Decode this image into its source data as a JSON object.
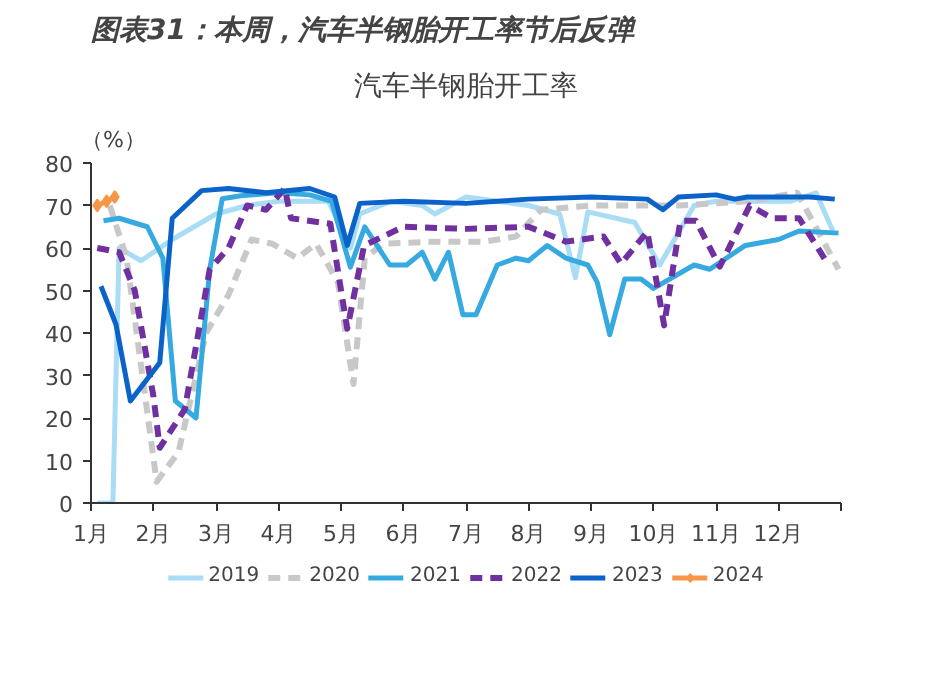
{
  "chart_data": {
    "type": "line",
    "title": "图表31：本周，汽车半钢胎开工率节后反弹",
    "subtitle": "汽车半钢胎开工率",
    "ylabel": "（%）",
    "xlim": [
      1,
      13
    ],
    "xticks": [
      {
        "value": 1,
        "label": "1月"
      },
      {
        "value": 2,
        "label": "2月"
      },
      {
        "value": 3,
        "label": "3月"
      },
      {
        "value": 4,
        "label": "4月"
      },
      {
        "value": 5,
        "label": "5月"
      },
      {
        "value": 6,
        "label": "6月"
      },
      {
        "value": 7,
        "label": "7月"
      },
      {
        "value": 8,
        "label": "8月"
      },
      {
        "value": 9,
        "label": "9月"
      },
      {
        "value": 10,
        "label": "10月"
      },
      {
        "value": 11,
        "label": "11月"
      },
      {
        "value": 12,
        "label": "12月"
      },
      {
        "value": 13,
        "label": null
      }
    ],
    "ylim": [
      0,
      80
    ],
    "yticks": [
      0,
      10,
      20,
      30,
      40,
      50,
      60,
      70,
      80
    ],
    "grid": false,
    "legend": "bottom",
    "series": [
      {
        "name": "2019",
        "color": "#a9dcf5",
        "line_style": "solid",
        "marker": "none",
        "x": [
          1.1,
          1.35,
          1.45,
          1.8,
          2.3,
          3,
          3.5,
          4,
          4.8,
          5.15,
          5.3,
          5.8,
          6.3,
          6.5,
          7,
          7.5,
          8,
          8.5,
          8.75,
          8.95,
          9.7,
          10.1,
          10.65,
          11,
          11.5,
          12.2,
          12.6,
          12.87
        ],
        "values": [
          0,
          0,
          60,
          57,
          62,
          68,
          70,
          71,
          71,
          60,
          68,
          71,
          70,
          68,
          72,
          71,
          70,
          68,
          53,
          68.5,
          66,
          56,
          70,
          71,
          71,
          71,
          73,
          64
        ]
      },
      {
        "name": "2020",
        "color": "#c8c8c8",
        "line_style": "dashed",
        "marker": "none",
        "x": [
          1.3,
          1.57,
          2.05,
          2.4,
          2.84,
          3.2,
          3.57,
          3.9,
          4.3,
          4.6,
          4.95,
          5.2,
          5.38,
          5.68,
          6.5,
          7.3,
          7.8,
          8.2,
          9,
          10.4,
          11.5,
          12.3,
          12.96
        ],
        "values": [
          70,
          57.6,
          5,
          12,
          40,
          49,
          62,
          61,
          57.6,
          61,
          52,
          28,
          57.6,
          61,
          61.5,
          61.5,
          62.7,
          69,
          70,
          70,
          71,
          73,
          55
        ]
      },
      {
        "name": "2021",
        "color": "#36a9e1",
        "line_style": "solid",
        "marker": "none",
        "x": [
          1.2,
          1.45,
          1.9,
          2.15,
          2.35,
          2.68,
          2.9,
          3.1,
          3.4,
          4,
          4.5,
          4.85,
          5.15,
          5.38,
          5.78,
          6.05,
          6.3,
          6.5,
          6.72,
          6.95,
          7.16,
          7.5,
          7.8,
          8,
          8.3,
          8.6,
          8.95,
          9.1,
          9.3,
          9.54,
          9.8,
          10,
          10.65,
          10.9,
          11.47,
          12,
          12.33,
          12.96
        ],
        "values": [
          66.4,
          67,
          65,
          57.6,
          24,
          20,
          55,
          71.6,
          72.3,
          73,
          72.5,
          71,
          55.5,
          65,
          56,
          56,
          59,
          52.7,
          59,
          44.3,
          44.3,
          56,
          57.6,
          57,
          60.6,
          57.6,
          56,
          51.9,
          39.6,
          52.7,
          52.7,
          50.5,
          56,
          55,
          60.6,
          62,
          64,
          63.5
        ]
      },
      {
        "name": "2022",
        "color": "#7030a0",
        "line_style": "dashed",
        "marker": "none",
        "x": [
          1.1,
          1.45,
          1.7,
          2.0,
          2.1,
          2.5,
          2.9,
          3.2,
          3.5,
          3.8,
          4.1,
          4.2,
          4.83,
          5.1,
          5.37,
          6,
          7,
          8,
          8.6,
          9.2,
          9.48,
          9.9,
          10.05,
          10.17,
          10.43,
          10.68,
          11.06,
          11.54,
          11.9,
          12.33,
          12.8
        ],
        "values": [
          60,
          59,
          50,
          25,
          13,
          22,
          55,
          60,
          70,
          69,
          74,
          67,
          65.7,
          41,
          60.6,
          65,
          64.5,
          65,
          61.5,
          62.7,
          56.3,
          63.8,
          52,
          41.8,
          66.4,
          66.4,
          55.6,
          70,
          67,
          67,
          56
        ]
      },
      {
        "name": "2023",
        "color": "#0b62c9",
        "line_style": "solid",
        "marker": "none",
        "x": [
          1.16,
          1.4,
          1.63,
          2.1,
          2.3,
          2.77,
          3.2,
          3.8,
          4.5,
          4.9,
          5.1,
          5.3,
          6,
          7,
          7.5,
          8,
          9,
          9.9,
          10.15,
          10.4,
          11,
          11.3,
          11.5,
          12,
          12.5,
          12.9
        ],
        "values": [
          51,
          42,
          24,
          33,
          67,
          73.5,
          74,
          73,
          74,
          72,
          60.6,
          70.5,
          71,
          70.5,
          71,
          71.5,
          72,
          71.5,
          69,
          72,
          72.5,
          71.5,
          72,
          72,
          72,
          71.5
        ]
      },
      {
        "name": "2024",
        "color": "#f79646",
        "line_style": "solid",
        "marker": "diamond",
        "x": [
          1.1,
          1.25,
          1.38
        ],
        "values": [
          70,
          71,
          72
        ]
      }
    ]
  }
}
